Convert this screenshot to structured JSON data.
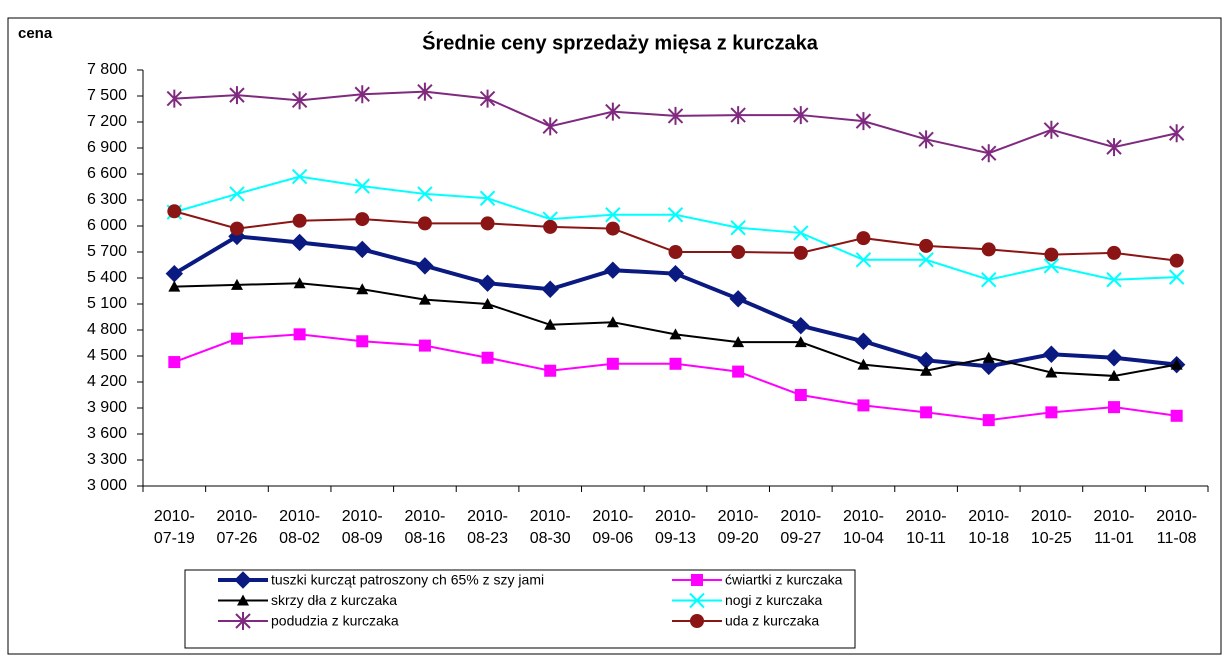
{
  "chart_data": {
    "type": "line",
    "title": "Średnie ceny sprzedaży mięsa z kurczaka",
    "y_label": "cena",
    "categories": [
      "2010-07-19",
      "2010-07-26",
      "2010-08-02",
      "2010-08-09",
      "2010-08-16",
      "2010-08-23",
      "2010-08-30",
      "2010-09-06",
      "2010-09-13",
      "2010-09-20",
      "2010-09-27",
      "2010-10-04",
      "2010-10-11",
      "2010-10-18",
      "2010-10-25",
      "2010-11-01",
      "2010-11-08"
    ],
    "ylim": [
      3000,
      7800
    ],
    "yticks": [
      {
        "value": 3000,
        "label": "3 000"
      },
      {
        "value": 3300,
        "label": "3 300"
      },
      {
        "value": 3600,
        "label": "3 600"
      },
      {
        "value": 3900,
        "label": "3 900"
      },
      {
        "value": 4200,
        "label": "4 200"
      },
      {
        "value": 4500,
        "label": "4 500"
      },
      {
        "value": 4800,
        "label": "4 800"
      },
      {
        "value": 5100,
        "label": "5 100"
      },
      {
        "value": 5400,
        "label": "5 400"
      },
      {
        "value": 5700,
        "label": "5 700"
      },
      {
        "value": 6000,
        "label": "6 000"
      },
      {
        "value": 6300,
        "label": "6 300"
      },
      {
        "value": 6600,
        "label": "6 600"
      },
      {
        "value": 6900,
        "label": "6 900"
      },
      {
        "value": 7200,
        "label": "7 200"
      },
      {
        "value": 7500,
        "label": "7 500"
      },
      {
        "value": 7800,
        "label": "7 800"
      }
    ],
    "grid": false,
    "legend": "bottom",
    "series": [
      {
        "name": "tuszki kurcząt patroszony ch 65% z szy jami",
        "color": "#0a1a80",
        "marker": "diamond",
        "line_width": 4,
        "values": [
          5450,
          5880,
          5810,
          5730,
          5540,
          5340,
          5270,
          5490,
          5450,
          5160,
          4850,
          4670,
          4450,
          4380,
          4520,
          4480,
          4400
        ]
      },
      {
        "name": "ćwiartki z kurczaka",
        "color": "#ff00ff",
        "marker": "square",
        "line_width": 2,
        "values": [
          4430,
          4700,
          4750,
          4670,
          4620,
          4480,
          4330,
          4410,
          4410,
          4320,
          4050,
          3930,
          3850,
          3760,
          3850,
          3910,
          3810
        ]
      },
      {
        "name": "skrzy dła z kurczaka",
        "color": "#000000",
        "marker": "triangle",
        "line_width": 2,
        "values": [
          5300,
          5320,
          5340,
          5270,
          5150,
          5100,
          4860,
          4890,
          4750,
          4660,
          4660,
          4400,
          4330,
          4480,
          4310,
          4270,
          4400
        ]
      },
      {
        "name": "nogi z kurczaka",
        "color": "#00ffff",
        "marker": "x",
        "line_width": 2,
        "values": [
          6160,
          6370,
          6570,
          6460,
          6370,
          6320,
          6080,
          6130,
          6130,
          5980,
          5920,
          5610,
          5610,
          5380,
          5540,
          5380,
          5410
        ]
      },
      {
        "name": "podudzia z kurczaka",
        "color": "#7f2a7f",
        "marker": "star",
        "line_width": 2,
        "values": [
          7470,
          7510,
          7450,
          7520,
          7550,
          7470,
          7150,
          7320,
          7270,
          7280,
          7280,
          7210,
          7000,
          6840,
          7110,
          6910,
          7070
        ]
      },
      {
        "name": "uda z kurczaka",
        "color": "#8b1414",
        "marker": "circle",
        "line_width": 2,
        "values": [
          6170,
          5970,
          6060,
          6080,
          6030,
          6030,
          5990,
          5970,
          5700,
          5700,
          5690,
          5860,
          5770,
          5730,
          5670,
          5690,
          5600
        ]
      }
    ]
  }
}
